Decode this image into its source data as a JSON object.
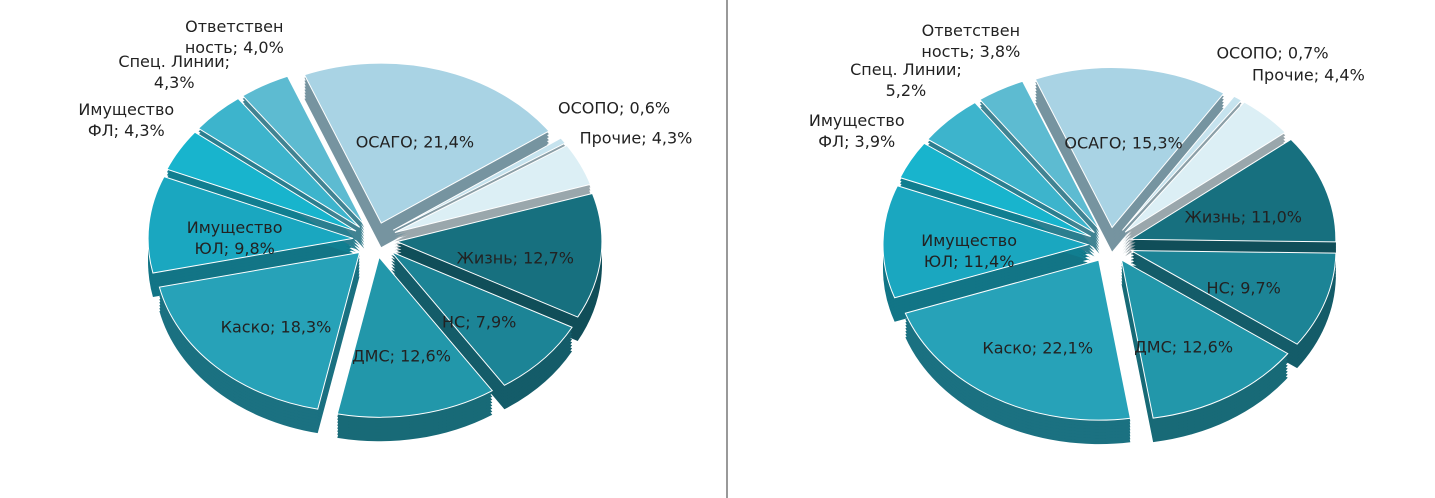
{
  "chart_data": [
    {
      "type": "pie",
      "values": [
        21.4,
        0.6,
        4.3,
        12.7,
        7.9,
        12.6,
        18.3,
        9.8,
        4.3,
        4.3,
        4.0
      ],
      "value_labels": [
        "ОСАГО; 21,4%",
        "ОСОПО; 0,6%",
        "Прочие; 4,3%",
        "Жизнь; 12,7%",
        "НС; 7,9%",
        "ДМС; 12,6%",
        "Каско; 18,3%",
        "Имущество ЮЛ; 9,8%",
        "Имущество ФЛ; 4,3%",
        "Спец. Линии; 4,3%",
        "Ответствен ность; 4,0%"
      ],
      "colors": [
        "#a9d3e4",
        "#c6e3ee",
        "#dceff5",
        "#17707f",
        "#1c8496",
        "#2297aa",
        "#27a2b8",
        "#1aa7c0",
        "#18b4cd",
        "#3db4cc",
        "#5dbbd1"
      ]
    },
    {
      "type": "pie",
      "values": [
        15.3,
        0.7,
        4.4,
        11.0,
        9.7,
        12.6,
        22.1,
        11.4,
        3.9,
        5.2,
        3.8
      ],
      "value_labels": [
        "ОСАГО; 15,3%",
        "ОСОПО; 0,7%",
        "Прочие; 4,4%",
        "Жизнь; 11,0%",
        "НС; 9,7%",
        "ДМС; 12,6%",
        "Каско; 22,1%",
        "Имущество ЮЛ; 11,4%",
        "Имущество ФЛ; 3,9%",
        "Спец. Линии; 5,2%",
        "Ответствен ность; 3,8%"
      ],
      "colors": [
        "#a9d3e4",
        "#c6e3ee",
        "#dceff5",
        "#17707f",
        "#1c8496",
        "#2297aa",
        "#27a2b8",
        "#1aa7c0",
        "#18b4cd",
        "#3db4cc",
        "#5dbbd1"
      ]
    }
  ]
}
